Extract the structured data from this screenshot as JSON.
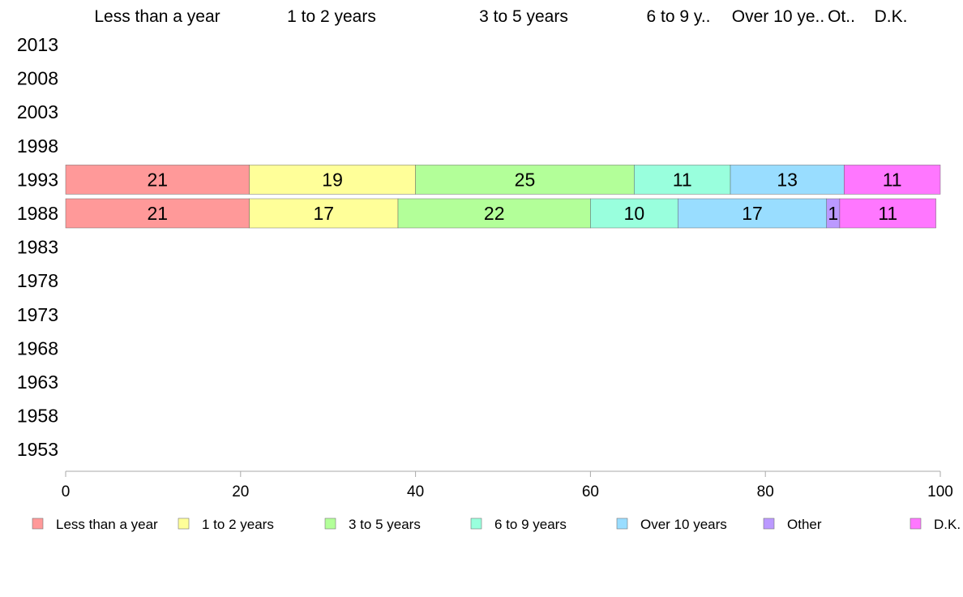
{
  "chart_data": {
    "type": "bar",
    "orientation": "horizontal",
    "stacked": true,
    "categories": [
      "2013",
      "2008",
      "2003",
      "1998",
      "1993",
      "1988",
      "1983",
      "1978",
      "1973",
      "1968",
      "1963",
      "1958",
      "1953"
    ],
    "top_labels": [
      "Less than a year",
      "1 to 2 years",
      "3 to 5 years",
      "6 to 9 y..",
      "Over 10 ye..",
      "Ot..",
      "D.K."
    ],
    "series": [
      {
        "name": "Less than a year",
        "color": "#ff9999",
        "values": [
          null,
          null,
          null,
          null,
          21,
          21,
          null,
          null,
          null,
          null,
          null,
          null,
          null
        ]
      },
      {
        "name": "1 to 2 years",
        "color": "#ffff99",
        "values": [
          null,
          null,
          null,
          null,
          19,
          17,
          null,
          null,
          null,
          null,
          null,
          null,
          null
        ]
      },
      {
        "name": "3 to 5 years",
        "color": "#b3ff99",
        "values": [
          null,
          null,
          null,
          null,
          25,
          22,
          null,
          null,
          null,
          null,
          null,
          null,
          null
        ]
      },
      {
        "name": "6 to 9 years",
        "color": "#99ffdd",
        "values": [
          null,
          null,
          null,
          null,
          11,
          10,
          null,
          null,
          null,
          null,
          null,
          null,
          null
        ]
      },
      {
        "name": "Over 10 years",
        "color": "#99ddff",
        "values": [
          null,
          null,
          null,
          null,
          13,
          17,
          null,
          null,
          null,
          null,
          null,
          null,
          null
        ]
      },
      {
        "name": "Other",
        "color": "#bb99ff",
        "values": [
          null,
          null,
          null,
          null,
          0,
          1.5,
          null,
          null,
          null,
          null,
          null,
          null,
          null
        ]
      },
      {
        "name": "D.K.",
        "color": "#ff77ff",
        "values": [
          null,
          null,
          null,
          null,
          11,
          11,
          null,
          null,
          null,
          null,
          null,
          null,
          null
        ]
      }
    ],
    "bar_labels": [
      [
        null,
        null,
        null,
        null,
        null,
        null,
        null,
        null,
        null,
        null,
        null,
        null,
        null
      ],
      [
        null,
        null,
        null,
        null,
        null,
        null,
        null,
        null,
        null,
        null,
        null,
        null,
        null
      ],
      [
        null,
        null,
        null,
        null,
        null,
        null,
        null,
        null,
        null,
        null,
        null,
        null,
        null
      ],
      [
        null,
        null,
        null,
        null,
        null,
        null,
        null,
        null,
        null,
        null,
        null,
        null,
        null
      ],
      [
        null,
        null,
        null,
        null,
        [
          "21",
          "19",
          "25",
          "11",
          "13",
          "",
          "11"
        ],
        [
          "21",
          "17",
          "22",
          "10",
          "17",
          "1",
          "11"
        ],
        null,
        null,
        null,
        null,
        null,
        null,
        null
      ]
    ],
    "xlim": [
      0,
      100
    ],
    "xticks": [
      0,
      20,
      40,
      60,
      80,
      100
    ],
    "grid": false,
    "legend_position": "bottom"
  }
}
